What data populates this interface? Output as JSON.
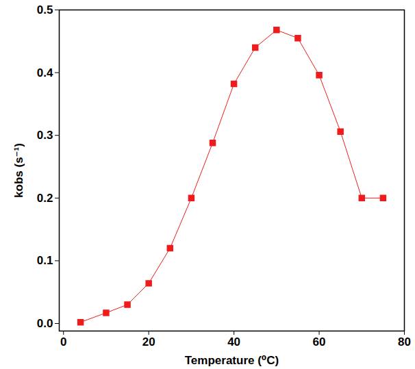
{
  "chart_data": {
    "type": "line",
    "x_label": "Temperature (⁰C)",
    "y_label": "kobs (s⁻¹)",
    "x": [
      4,
      10,
      15,
      20,
      25,
      30,
      35,
      40,
      45,
      50,
      55,
      60,
      65,
      70,
      75
    ],
    "series": [
      {
        "name": "kobs",
        "color": "#ee1c1c",
        "marker": "square",
        "line_style": "solid",
        "values": [
          0.002,
          0.017,
          0.03,
          0.064,
          0.12,
          0.2,
          0.288,
          0.382,
          0.44,
          0.468,
          0.455,
          0.396,
          0.306,
          0.2,
          0.2
        ]
      }
    ],
    "xlim": [
      -1,
      80
    ],
    "xticks": [
      0,
      20,
      40,
      60,
      80
    ],
    "ylim": [
      -0.012,
      0.5
    ],
    "yticks": [
      {
        "value": 0,
        "label": "0.0"
      },
      0.1,
      0.2,
      0.3,
      0.4,
      0.5
    ],
    "grid": false
  }
}
